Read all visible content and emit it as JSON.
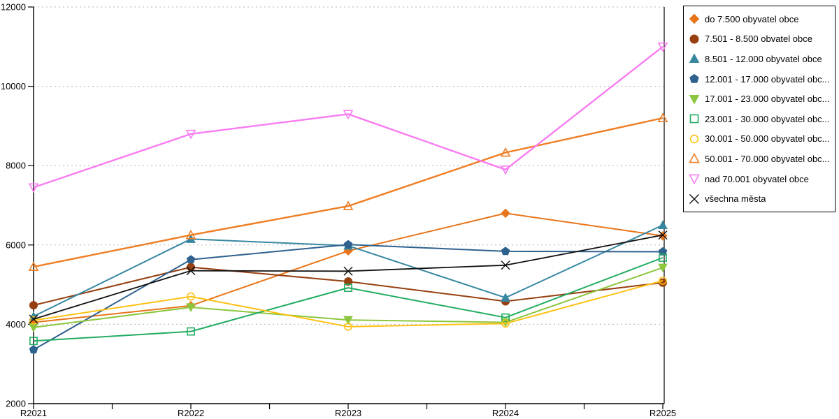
{
  "chart_data": {
    "type": "line",
    "title": "",
    "xlabel": "",
    "ylabel": "",
    "x_categories": [
      "R2021",
      "R2022",
      "R2023",
      "R2024",
      "R2025"
    ],
    "ylim": [
      2000,
      12000
    ],
    "ytick_step": 2000,
    "ytick_labels": [
      "2000",
      "4000",
      "6000",
      "8000",
      "10000",
      "12000"
    ],
    "grid": "horizontal-dotted",
    "legend_position": "right",
    "series": [
      {
        "name": "do 7.500 obyvatel obce",
        "marker": "diamond",
        "fill": "filled",
        "color": "#e8751a",
        "values": [
          4050,
          4470,
          5850,
          6800,
          6230
        ]
      },
      {
        "name": "7.501 - 8.500 obvatel obce",
        "marker": "circle",
        "fill": "filled",
        "color": "#963f10",
        "values": [
          4480,
          5440,
          5080,
          4580,
          5050
        ]
      },
      {
        "name": "8.501 - 12.000 obyvatel obce",
        "marker": "triangle-up",
        "fill": "filled",
        "color": "#3787a1",
        "values": [
          4200,
          6150,
          5980,
          4670,
          6500
        ]
      },
      {
        "name": "12.001 - 17.000 obyvatel obc...",
        "marker": "pentagon",
        "fill": "filled",
        "color": "#2f618e",
        "values": [
          3360,
          5630,
          6010,
          5840,
          5830
        ]
      },
      {
        "name": "17.001 - 23.000 obyvatel obc...",
        "marker": "triangle-down",
        "fill": "filled",
        "color": "#8cc63e",
        "values": [
          3920,
          4430,
          4110,
          4050,
          5430
        ]
      },
      {
        "name": "23.001 - 30.000 obyvatel obc...",
        "marker": "square",
        "fill": "outline",
        "color": "#22ac62",
        "values": [
          3580,
          3820,
          4920,
          4170,
          5680
        ]
      },
      {
        "name": "30.001 - 50.000 obyvatel obc...",
        "marker": "circle",
        "fill": "outline",
        "color": "#fec113",
        "values": [
          4100,
          4700,
          3940,
          4020,
          5100
        ]
      },
      {
        "name": "50.001 - 70.000 obyvatel obc...",
        "marker": "triangle-up",
        "fill": "outline",
        "color": "#ef7d23",
        "values": [
          5450,
          6250,
          6980,
          8330,
          9200
        ]
      },
      {
        "name": "nad 70.001 obyvatel obce",
        "marker": "triangle-down",
        "fill": "outline",
        "color": "#f97cf2",
        "values": [
          7450,
          8800,
          9300,
          7900,
          11000
        ]
      },
      {
        "name": "všechna města",
        "marker": "x",
        "fill": "line",
        "color": "#111111",
        "values": [
          4130,
          5350,
          5340,
          5490,
          6250
        ]
      }
    ],
    "axis_color": "#000000",
    "gridline_color": "#b3b3b3"
  }
}
